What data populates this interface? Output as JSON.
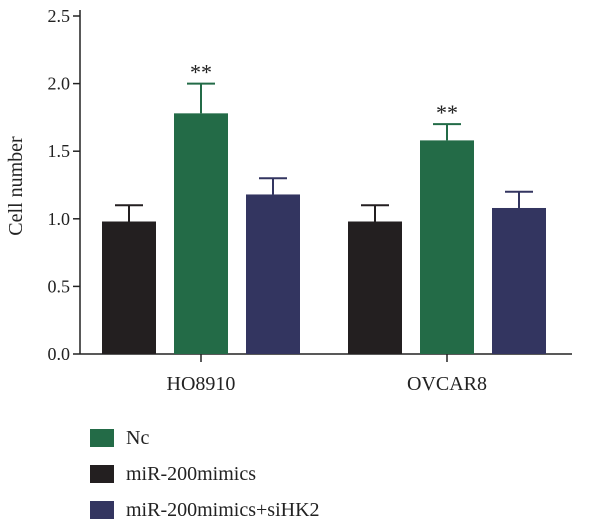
{
  "chart_data": {
    "type": "bar",
    "ylabel": "Cell number",
    "xlabel": "",
    "ylim": [
      0,
      2.5
    ],
    "yticks": [
      "0.0",
      "0.5",
      "1.0",
      "1.5",
      "2.0",
      "2.5"
    ],
    "categories": [
      "HO8910",
      "OVCAR8"
    ],
    "series": [
      {
        "name": "miR-200mimics",
        "color": "#231f20",
        "values": [
          0.98,
          0.98
        ],
        "errors": [
          0.12,
          0.12
        ],
        "significance": [
          "",
          ""
        ]
      },
      {
        "name": "Nc",
        "color": "#236b47",
        "values": [
          1.78,
          1.58
        ],
        "errors": [
          0.22,
          0.12
        ],
        "significance": [
          "**",
          "**"
        ]
      },
      {
        "name": "miR-200mimics+siHK2",
        "color": "#333560",
        "values": [
          1.18,
          1.08
        ],
        "errors": [
          0.12,
          0.12
        ],
        "significance": [
          "",
          ""
        ]
      }
    ],
    "legend": {
      "position": "bottom-left",
      "entries": [
        {
          "label": "Nc",
          "color": "#236b47"
        },
        {
          "label": "miR-200mimics",
          "color": "#231f20"
        },
        {
          "label": "miR-200mimics+siHK2",
          "color": "#333560"
        }
      ]
    },
    "grid": false
  }
}
